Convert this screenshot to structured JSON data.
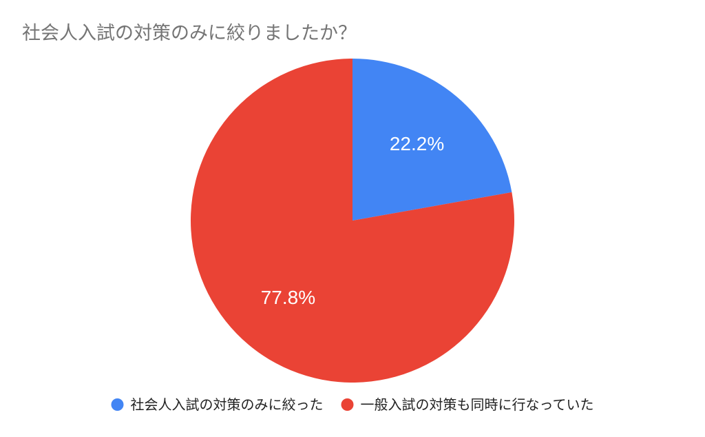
{
  "chart_data": {
    "type": "pie",
    "title": "社会人入試の対策のみに絞りましたか？",
    "labels": [
      "社会人入試の対策のみに絞った",
      "一般入試の対策も同時に行なっていた"
    ],
    "values": [
      22.2,
      77.8
    ],
    "value_labels": [
      "22.2%",
      "77.8%"
    ],
    "colors": [
      "#4285f4",
      "#ea4335"
    ],
    "start_angle_deg": 0,
    "direction": "clockwise",
    "legend_position": "bottom",
    "label_color": "#ffffff",
    "title_color": "#757575",
    "legend_text_color": "#222222"
  }
}
